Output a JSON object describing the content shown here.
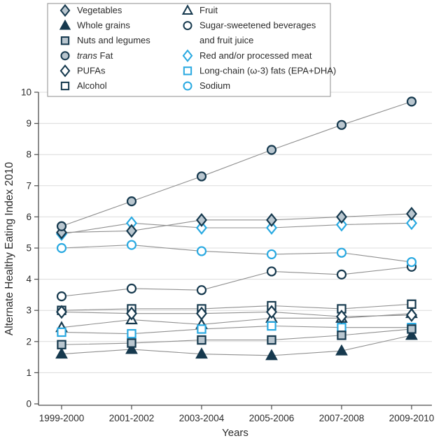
{
  "figure": {
    "ylabel": "Alternate Healthy Eating Index 2010",
    "xlabel": "Years",
    "colors": {
      "dark": "#16394e",
      "blue": "#29a9e1",
      "gray_fill": "#b9c6cf",
      "white_fill": "#ffffff",
      "series_line": "#8f8f8f",
      "grid": "#dcdcdc",
      "axis": "#4d4d4d",
      "text": "#2b2b2b",
      "legend_border": "#8c8c8c"
    }
  },
  "chart_data": {
    "type": "line",
    "title": "",
    "xlabel": "Years",
    "ylabel": "Alternate Healthy Eating Index 2010",
    "ylim": [
      0,
      10
    ],
    "yticks": [
      0,
      1,
      2,
      3,
      4,
      5,
      6,
      7,
      8,
      9,
      10
    ],
    "grid": "horizontal",
    "legend_position": "top",
    "categories": [
      "1999-2000",
      "2001-2002",
      "2003-2004",
      "2005-2006",
      "2007-2008",
      "2009-2010"
    ],
    "series": [
      {
        "name": "Whole grains",
        "marker": "triangle",
        "color": "dark",
        "fill": "solid",
        "values": [
          1.6,
          1.75,
          1.6,
          1.55,
          1.7,
          2.2
        ]
      },
      {
        "name": "Fruit",
        "marker": "triangle",
        "color": "dark",
        "fill": "white",
        "values": [
          2.45,
          2.7,
          2.55,
          2.75,
          2.75,
          2.9
        ]
      },
      {
        "name": "Long-chain (ω-3) fats (EPA+DHA)",
        "marker": "square",
        "color": "blue",
        "fill": "white",
        "values": [
          2.3,
          2.25,
          2.4,
          2.5,
          2.45,
          2.45
        ]
      },
      {
        "name": "Nuts and legumes",
        "marker": "square",
        "color": "dark",
        "fill": "gray",
        "values": [
          1.9,
          1.95,
          2.05,
          2.05,
          2.2,
          2.4
        ]
      },
      {
        "name": "Alcohol",
        "marker": "square",
        "color": "dark",
        "fill": "white",
        "values": [
          3.0,
          3.05,
          3.05,
          3.15,
          3.05,
          3.2
        ]
      },
      {
        "name": "PUFAs",
        "marker": "diamond",
        "color": "dark",
        "fill": "white",
        "values": [
          2.95,
          2.9,
          2.9,
          2.95,
          2.8,
          2.85
        ]
      },
      {
        "name": "Sugar-sweetened beverages and fruit juice",
        "marker": "circle",
        "color": "dark",
        "fill": "white",
        "values": [
          3.45,
          3.7,
          3.65,
          4.25,
          4.15,
          4.4
        ]
      },
      {
        "name": "Sodium",
        "marker": "circle",
        "color": "blue",
        "fill": "white",
        "values": [
          5.0,
          5.1,
          4.9,
          4.8,
          4.85,
          4.55
        ]
      },
      {
        "name": "Red and/or processed meat",
        "marker": "diamond",
        "color": "blue",
        "fill": "white",
        "values": [
          5.45,
          5.8,
          5.65,
          5.65,
          5.75,
          5.8
        ]
      },
      {
        "name": "Vegetables",
        "marker": "diamond",
        "color": "dark",
        "fill": "gray",
        "values": [
          5.5,
          5.55,
          5.9,
          5.9,
          6.0,
          6.1
        ]
      },
      {
        "name": "trans Fat",
        "marker": "circle",
        "color": "dark",
        "fill": "gray",
        "values": [
          5.7,
          6.5,
          7.3,
          8.15,
          8.95,
          9.7
        ]
      }
    ],
    "legend": {
      "left": [
        {
          "series": "Vegetables",
          "label": "Vegetables"
        },
        {
          "series": "Whole grains",
          "label": "Whole grains"
        },
        {
          "series": "Nuts and legumes",
          "label": "Nuts and legumes"
        },
        {
          "series": "trans Fat",
          "label": "trans Fat",
          "italic_part": "trans"
        },
        {
          "series": "PUFAs",
          "label": "PUFAs"
        },
        {
          "series": "Alcohol",
          "label": "Alcohol"
        }
      ],
      "right": [
        {
          "series": "Fruit",
          "label": "Fruit"
        },
        {
          "series": "Sugar-sweetened beverages and fruit juice",
          "label": "Sugar-sweetened beverages and fruit juice",
          "lines": [
            "Sugar-sweetened beverages",
            "and fruit juice"
          ]
        },
        {
          "series": "Red and/or processed meat",
          "label": "Red and/or processed meat"
        },
        {
          "series": "Long-chain (ω-3) fats (EPA+DHA)",
          "label": "Long-chain (ω-3) fats (EPA+DHA)"
        },
        {
          "series": "Sodium",
          "label": "Sodium"
        }
      ]
    }
  }
}
